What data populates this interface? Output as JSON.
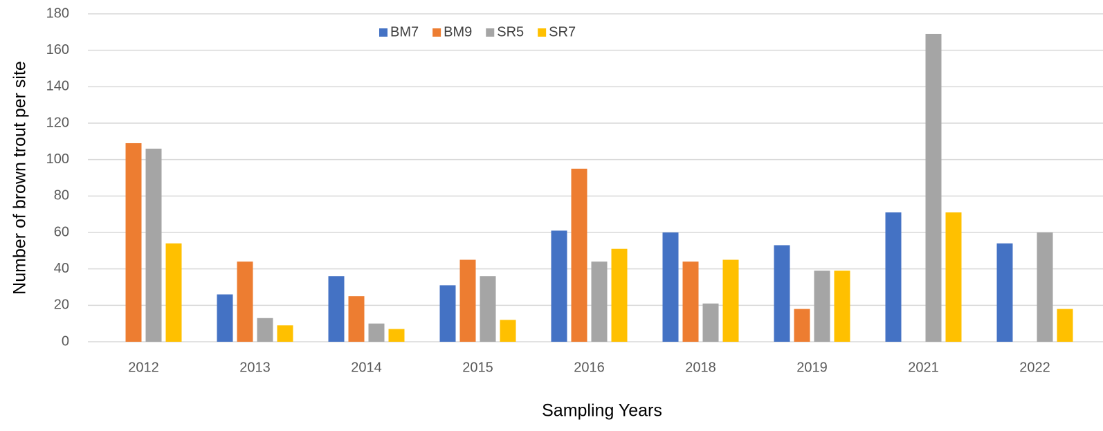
{
  "chart_data": {
    "type": "bar",
    "x_label": "Sampling Years",
    "y_label": "Number of brown trout per site",
    "categories": [
      "2012",
      "2013",
      "2014",
      "2015",
      "2016",
      "2018",
      "2019",
      "2021",
      "2022"
    ],
    "series": [
      {
        "name": "BM7",
        "color": "#4472c4",
        "values": [
          null,
          26,
          36,
          31,
          61,
          60,
          53,
          71,
          54
        ]
      },
      {
        "name": "BM9",
        "color": "#ed7d31",
        "values": [
          109,
          44,
          25,
          45,
          95,
          44,
          18,
          null,
          null
        ]
      },
      {
        "name": "SR5",
        "color": "#a5a5a5",
        "values": [
          106,
          13,
          10,
          36,
          44,
          21,
          39,
          169,
          60
        ]
      },
      {
        "name": "SR7",
        "color": "#ffc000",
        "values": [
          54,
          9,
          7,
          12,
          51,
          45,
          39,
          71,
          18
        ]
      }
    ],
    "ylim": [
      0,
      180
    ],
    "yticks": [
      0,
      20,
      40,
      60,
      80,
      100,
      120,
      140,
      160,
      180
    ],
    "grid": true,
    "legend": "top"
  }
}
